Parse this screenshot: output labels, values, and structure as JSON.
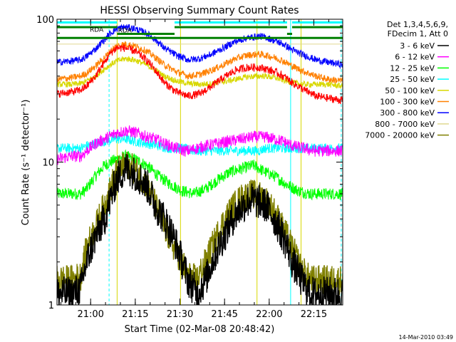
{
  "chart_data": {
    "type": "line",
    "title": "HESSI Observing Summary Count Rates",
    "xlabel": "Start Time (02-Mar-08 20:48:42)",
    "ylabel": "Count Rate (s⁻¹ detector⁻¹)",
    "x_axis_unit": "minutes after 20:48:42",
    "xlim": [
      0,
      96
    ],
    "ylim": [
      1,
      100
    ],
    "yscale": "log",
    "x_ticks": [
      {
        "label": "21:00",
        "x": 11.3
      },
      {
        "label": "21:15",
        "x": 26.3
      },
      {
        "label": "21:30",
        "x": 41.3
      },
      {
        "label": "21:45",
        "x": 56.3
      },
      {
        "label": "22:00",
        "x": 71.3
      },
      {
        "label": "22:15",
        "x": 86.3
      }
    ],
    "y_ticks": [
      {
        "label": "1",
        "y": 1
      },
      {
        "label": "10",
        "y": 10
      },
      {
        "label": "100",
        "y": 100
      }
    ],
    "legend": {
      "placement": "right",
      "header": [
        "Det 1,3,4,5,6,9,",
        "FDecim 1, Att 0"
      ]
    },
    "series": [
      {
        "name": "3 - 6 keV",
        "color": "#000000",
        "x": [
          0,
          5,
          8,
          10,
          13,
          16,
          18,
          20,
          23,
          24,
          27,
          30,
          33,
          36,
          39,
          42,
          44,
          47,
          50,
          53,
          56,
          59,
          62,
          65,
          68,
          70,
          73,
          76,
          79,
          82,
          85,
          88,
          92,
          96
        ],
        "y": [
          1.2,
          1.2,
          1.3,
          2,
          3,
          4,
          5.5,
          7.5,
          9,
          9,
          8,
          7,
          5,
          4,
          3,
          2,
          1.5,
          1.2,
          1.5,
          2.2,
          3,
          4,
          4.8,
          5.5,
          5.2,
          5,
          4,
          3,
          2,
          1.5,
          1.2,
          1.2,
          1.2,
          1.2
        ]
      },
      {
        "name": "6 - 12 keV",
        "color": "#ff00ff",
        "x": [
          0,
          5,
          8,
          10,
          13,
          16,
          20,
          23,
          24,
          27,
          30,
          33,
          36,
          40,
          43,
          44,
          47,
          50,
          54,
          58,
          62,
          66,
          68,
          70,
          73,
          76,
          79,
          83,
          86,
          89,
          92,
          96
        ],
        "y": [
          10.5,
          11,
          11,
          12,
          13.5,
          14.5,
          16,
          16.5,
          16.5,
          16,
          15,
          14.5,
          13.5,
          12.5,
          12,
          12,
          12.5,
          13,
          13.5,
          14,
          14.5,
          15,
          15,
          15,
          14.5,
          14,
          13,
          12.5,
          12,
          12,
          12,
          12
        ]
      },
      {
        "name": "12 - 25 keV",
        "color": "#00ff00",
        "x": [
          0,
          5,
          8,
          10,
          13,
          16,
          20,
          23,
          26,
          30,
          34,
          38,
          42,
          46,
          50,
          54,
          58,
          62,
          66,
          68,
          70,
          73,
          77,
          81,
          85,
          89,
          92,
          96
        ],
        "y": [
          6,
          6,
          6,
          6.5,
          8,
          9.5,
          10.5,
          11,
          10.5,
          9.5,
          8,
          7,
          6.3,
          6,
          6.5,
          7.5,
          8.5,
          9,
          9.5,
          9,
          8.5,
          8,
          7,
          6.3,
          6,
          6,
          6,
          6
        ]
      },
      {
        "name": "25 - 50 keV",
        "color": "#00ffff",
        "x": [
          0,
          5,
          8,
          10,
          13,
          16,
          20,
          23,
          26,
          30,
          34,
          38,
          42,
          46,
          50,
          54,
          58,
          62,
          66,
          68,
          70,
          73,
          77,
          81,
          85,
          89,
          92,
          96
        ],
        "y": [
          12.5,
          12.5,
          12.5,
          13,
          13.5,
          14,
          14.5,
          14.5,
          14,
          13.5,
          13,
          12.5,
          12.5,
          12,
          12,
          12,
          12,
          12,
          12,
          12,
          12.5,
          12.5,
          12.5,
          12.5,
          12.5,
          12.5,
          12.5,
          12.5
        ]
      },
      {
        "name": "50 - 100 keV",
        "color": "#d8d800",
        "x": [
          0,
          5,
          8,
          10,
          13,
          16,
          18,
          20,
          23,
          26,
          30,
          33,
          36,
          40,
          44,
          48,
          52,
          56,
          60,
          64,
          68,
          70,
          73,
          76,
          79,
          83,
          87,
          91,
          96
        ],
        "y": [
          35,
          35,
          35.5,
          37,
          40,
          45,
          48,
          51,
          53,
          52,
          48,
          44,
          40,
          37,
          35.5,
          35,
          35.5,
          36.5,
          38,
          39.5,
          40,
          40,
          39,
          37.5,
          36,
          35,
          35,
          35,
          34
        ]
      },
      {
        "name": "100 - 300 keV",
        "color": "#ff8000",
        "x": [
          0,
          5,
          8,
          10,
          13,
          16,
          18,
          20,
          23,
          26,
          30,
          33,
          36,
          40,
          44,
          48,
          52,
          56,
          60,
          64,
          68,
          70,
          73,
          76,
          79,
          83,
          87,
          91,
          96
        ],
        "y": [
          38,
          39,
          40,
          42,
          47,
          54,
          60,
          65,
          67,
          65,
          60,
          54,
          48,
          43,
          40,
          41,
          44,
          48,
          53,
          56,
          57,
          56,
          54,
          51,
          47,
          43,
          40,
          38,
          37
        ]
      },
      {
        "name": "300 - 800 keV",
        "color": "#0000ff",
        "x": [
          0,
          5,
          8,
          10,
          13,
          16,
          18,
          20,
          23,
          26,
          30,
          33,
          36,
          40,
          44,
          48,
          52,
          56,
          60,
          64,
          68,
          70,
          73,
          76,
          79,
          83,
          87,
          91,
          96
        ],
        "y": [
          50,
          51,
          52,
          55,
          62,
          72,
          80,
          86,
          88,
          86,
          80,
          72,
          63,
          56,
          52,
          53,
          57,
          63,
          70,
          74,
          76,
          75,
          71,
          67,
          61,
          56,
          52,
          50,
          48
        ]
      },
      {
        "name": "800 - 7000 keV",
        "color": "#e0d890",
        "x": [
          0,
          96
        ],
        "y": [
          67,
          67
        ]
      },
      {
        "name": "7000 - 20000 keV",
        "color": "#808000",
        "x": [
          0,
          5,
          8,
          10,
          13,
          16,
          18,
          20,
          23,
          24,
          27,
          30,
          33,
          36,
          39,
          42,
          44,
          47,
          50,
          53,
          56,
          59,
          62,
          65,
          68,
          70,
          73,
          76,
          79,
          82,
          85,
          88,
          92,
          96
        ],
        "y": [
          1.5,
          1.5,
          1.6,
          2.5,
          3.5,
          5,
          6.5,
          8.5,
          9.5,
          9.5,
          8.5,
          7,
          5,
          3.5,
          2.6,
          2,
          1.6,
          1.5,
          2,
          2.8,
          3.8,
          4.8,
          5.6,
          6,
          5.8,
          5.5,
          4.5,
          3.4,
          2.5,
          1.8,
          1.5,
          1.5,
          1.5,
          1.5
        ]
      },
      {
        "color": "#ff0000",
        "x": [
          0,
          5,
          8,
          10,
          13,
          16,
          18,
          20,
          23,
          26,
          30,
          33,
          36,
          40,
          44,
          48,
          52,
          56,
          60,
          64,
          68,
          70,
          73,
          76,
          79,
          83,
          87,
          91,
          96
        ],
        "y": [
          30,
          31,
          32,
          34,
          40,
          50,
          58,
          63,
          63,
          60,
          52,
          44,
          36,
          31,
          29,
          30,
          34,
          39,
          44,
          46,
          46,
          45,
          43,
          40,
          36,
          32,
          29,
          28,
          27
        ]
      }
    ],
    "state_bars": [
      {
        "label": "RDA",
        "color": "#00ffff",
        "segments": [
          [
            0,
            20.2
          ],
          [
            39.5,
            77.3
          ],
          [
            79,
            96
          ]
        ],
        "level": 95
      },
      {
        "label": "RDA",
        "color": "#008000",
        "segments": [
          [
            0,
            20.2
          ],
          [
            39.5,
            77.3
          ],
          [
            79,
            96
          ]
        ],
        "level": 88
      },
      {
        "label": "RDA",
        "color": "#008000",
        "segments": [
          [
            20.2,
            39.5
          ],
          [
            77.3,
            79
          ]
        ],
        "level": 79
      },
      {
        "label": "RDA",
        "color": "#008000",
        "segments": [
          [
            0,
            96
          ]
        ],
        "level": 74
      }
    ],
    "vertical_markers": [
      {
        "x": 17.5,
        "style": "dashed",
        "color": "#00ffff"
      },
      {
        "x": 20.2,
        "style": "solid",
        "color": "#d8d800"
      },
      {
        "x": 41.5,
        "style": "solid",
        "color": "#d8d800"
      },
      {
        "x": 67.2,
        "style": "solid",
        "color": "#d8d800"
      },
      {
        "x": 78.5,
        "style": "solid",
        "color": "#00ffff"
      },
      {
        "x": 82,
        "style": "solid",
        "color": "#d8d800"
      },
      {
        "x": 95.5,
        "style": "dashed",
        "color": "#00ffff"
      }
    ],
    "timestamp": "14-Mar-2010 03:49"
  }
}
